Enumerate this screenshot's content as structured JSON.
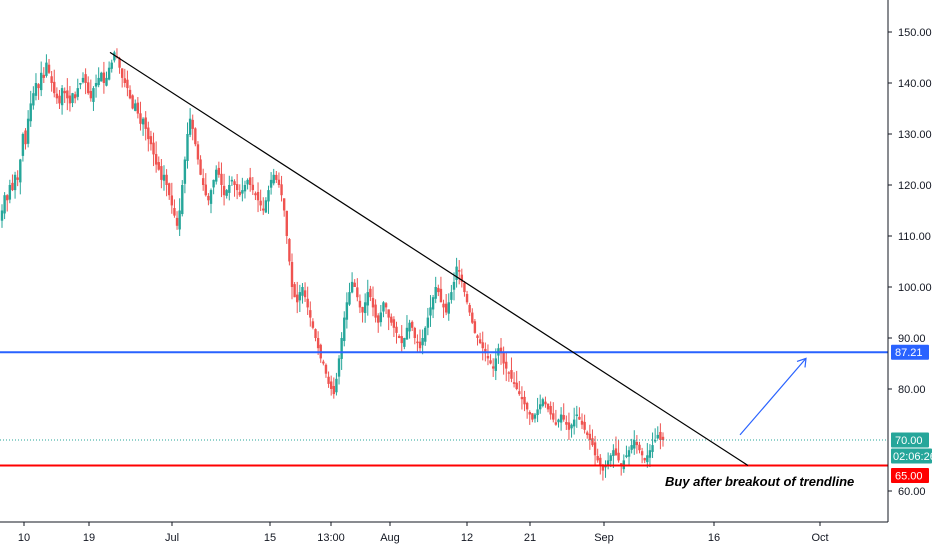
{
  "chart_data": {
    "type": "candlestick",
    "y_ticks": [
      "150.00",
      "140.00",
      "130.00",
      "120.00",
      "110.00",
      "100.00",
      "90.00",
      "80.00",
      "60.00"
    ],
    "ylim": [
      55,
      155
    ],
    "x_ticks": [
      "10",
      "19",
      "Jul",
      "15",
      "13:00",
      "Aug",
      "12",
      "21",
      "Sep",
      "16",
      "Oct"
    ],
    "price_levels": [
      {
        "name": "resistance",
        "value": 87.21,
        "label": "87.21",
        "color": "#2962ff"
      },
      {
        "name": "last-price",
        "value": 70.0,
        "label": "70.00",
        "color": "#26a69a"
      },
      {
        "name": "support",
        "value": 65.0,
        "label": "65.00",
        "color": "#ff0000"
      }
    ],
    "countdown_label": "02:06:26",
    "trendline": {
      "from_price": 146.0,
      "to_price": 65.0,
      "color": "#000000"
    },
    "projection_arrow": {
      "from_price": 71.0,
      "to_price": 86.0,
      "color": "#2962ff"
    },
    "annotation": "Buy after breakout of trendline",
    "up_color": "#26a69a",
    "down_color": "#ef5350",
    "series_close": [
      115,
      118,
      117,
      120,
      119,
      122,
      121,
      125,
      130,
      128,
      133,
      136,
      138,
      140,
      139,
      142,
      141,
      144,
      142,
      140,
      138,
      137,
      136,
      139,
      138,
      137,
      136,
      138,
      137,
      139,
      140,
      141,
      140,
      138,
      137,
      139,
      140,
      141,
      142,
      140,
      141,
      143,
      144,
      146,
      145,
      143,
      141,
      140,
      139,
      137,
      135,
      136,
      134,
      132,
      133,
      131,
      129,
      128,
      126,
      124,
      123,
      121,
      122,
      120,
      118,
      116,
      114,
      112,
      115,
      120,
      125,
      130,
      133,
      131,
      128,
      125,
      122,
      120,
      118,
      117,
      119,
      121,
      123,
      122,
      120,
      118,
      119,
      120,
      121,
      120,
      119,
      118,
      119,
      120,
      121,
      120,
      119,
      118,
      117,
      116,
      115,
      117,
      119,
      121,
      122,
      121,
      120,
      118,
      115,
      110,
      105,
      100,
      98,
      97,
      99,
      100,
      98,
      96,
      94,
      92,
      90,
      88,
      86,
      85,
      83,
      81,
      80,
      79,
      82,
      86,
      90,
      94,
      97,
      99,
      101,
      100,
      98,
      96,
      95,
      97,
      99,
      98,
      96,
      94,
      93,
      95,
      97,
      96,
      94,
      93,
      92,
      91,
      90,
      89,
      90,
      92,
      93,
      92,
      90,
      89,
      88,
      90,
      92,
      94,
      96,
      98,
      100,
      99,
      97,
      96,
      95,
      97,
      99,
      101,
      104,
      103,
      101,
      99,
      97,
      95,
      93,
      91,
      90,
      89,
      88,
      87,
      86,
      85,
      84,
      86,
      88,
      87,
      85,
      84,
      83,
      82,
      81,
      80,
      79,
      78,
      77,
      76,
      75,
      74,
      75,
      76,
      77,
      78,
      77,
      76,
      75,
      74,
      73,
      74,
      75,
      74,
      73,
      72,
      73,
      74,
      75,
      74,
      73,
      72,
      71,
      70,
      69,
      67,
      66,
      65,
      64,
      65,
      66,
      67,
      68,
      67,
      66,
      65,
      66,
      67,
      68,
      69,
      70,
      69,
      68,
      67,
      66,
      67,
      68,
      69,
      70,
      71,
      70,
      70
    ]
  }
}
